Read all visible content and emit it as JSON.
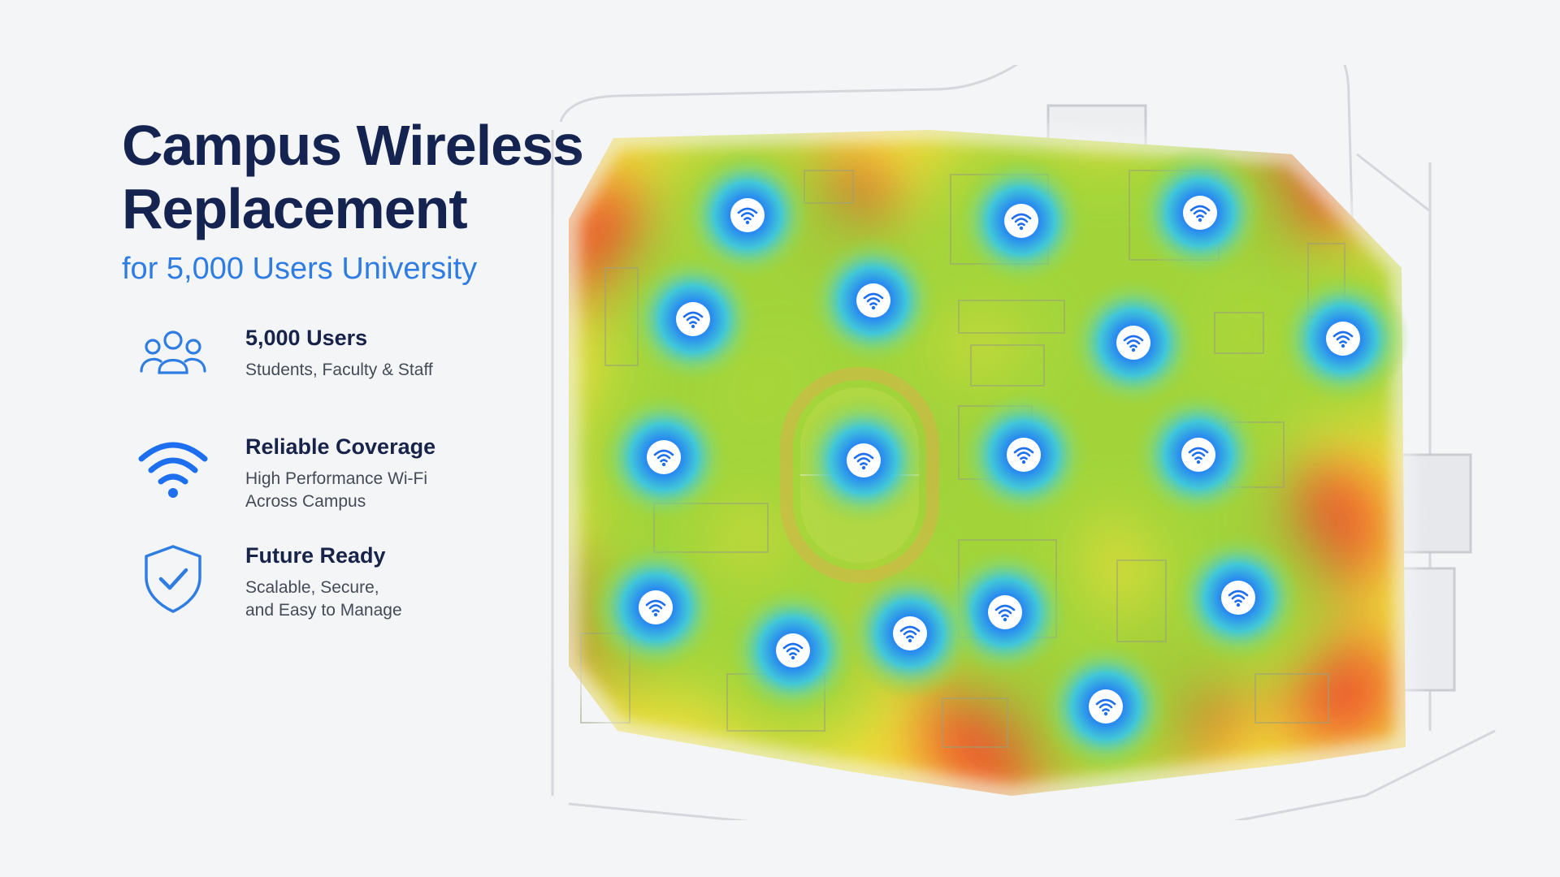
{
  "header": {
    "title_line1": "Campus Wireless",
    "title_line2": "Replacement",
    "subtitle": "for 5,000 Users University"
  },
  "features": [
    {
      "icon": "users-icon",
      "title": "5,000 Users",
      "description": "Students, Faculty & Staff"
    },
    {
      "icon": "wifi-icon",
      "title": "Reliable Coverage",
      "description": "High Performance Wi-Fi\nAcross Campus"
    },
    {
      "icon": "shield-check-icon",
      "title": "Future Ready",
      "description": "Scalable, Secure,\nand Easy to Manage"
    }
  ],
  "map": {
    "access_point_icon": "wifi-icon",
    "access_point_count": 17,
    "colors": {
      "strong_signal": "#1e6ff0",
      "good_signal": "#3cc7e0",
      "medium_signal": "#9ad43a",
      "weak_signal": "#f4e23c",
      "poor_signal": "#ef4a2e",
      "accent": "#2f7de3",
      "title": "#14234f"
    }
  }
}
